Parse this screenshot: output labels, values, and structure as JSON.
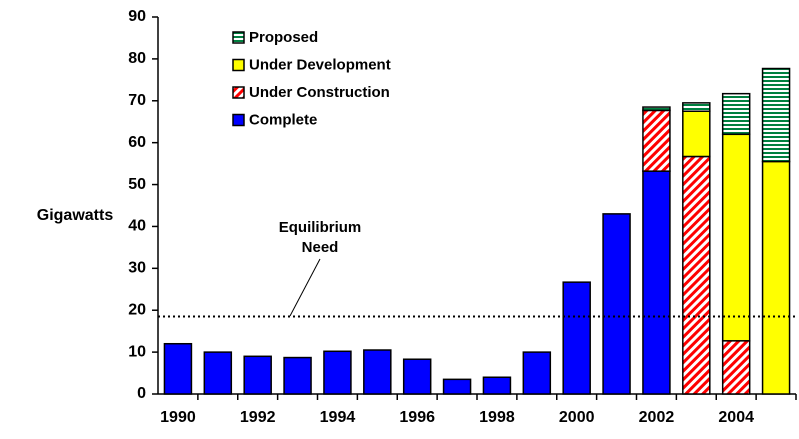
{
  "chart_data": {
    "type": "stacked_bar",
    "ylabel": "Gigawatts",
    "categories": [
      "1990",
      null,
      "1992",
      null,
      "1994",
      null,
      "1996",
      null,
      "1998",
      null,
      "2000",
      null,
      "2002",
      null,
      "2004",
      null
    ],
    "series": [
      {
        "name": "Complete",
        "color": "#0000ff",
        "pattern": "solid",
        "values": [
          12,
          10,
          9,
          8.7,
          10.2,
          10.5,
          8.3,
          3.5,
          4,
          10,
          26.7,
          43,
          53.2,
          0,
          0,
          0
        ]
      },
      {
        "name": "Under Construction",
        "color": "#ff0000",
        "pattern": "diagonal",
        "values": [
          0,
          0,
          0,
          0,
          0,
          0,
          0,
          0,
          0,
          0,
          0,
          0,
          14.5,
          56.7,
          12.7,
          0
        ]
      },
      {
        "name": "Under Development",
        "color": "#ffff00",
        "pattern": "solid",
        "values": [
          0,
          0,
          0,
          0,
          0,
          0,
          0,
          0,
          0,
          0,
          0,
          0,
          0,
          10.8,
          49.3,
          55.5
        ]
      },
      {
        "name": "Proposed",
        "color": "#008040",
        "pattern": "horizontal",
        "values": [
          0,
          0,
          0,
          0,
          0,
          0,
          0,
          0,
          0,
          0,
          0,
          0,
          0.8,
          2,
          9.7,
          22.2
        ]
      }
    ],
    "ylim": [
      0,
      90
    ],
    "yticks": [
      0,
      10,
      20,
      30,
      40,
      50,
      60,
      70,
      80,
      90
    ],
    "reference_line": {
      "value": 18.5,
      "label": [
        "Equilibrium",
        "Need"
      ]
    },
    "legend": "top-left"
  }
}
